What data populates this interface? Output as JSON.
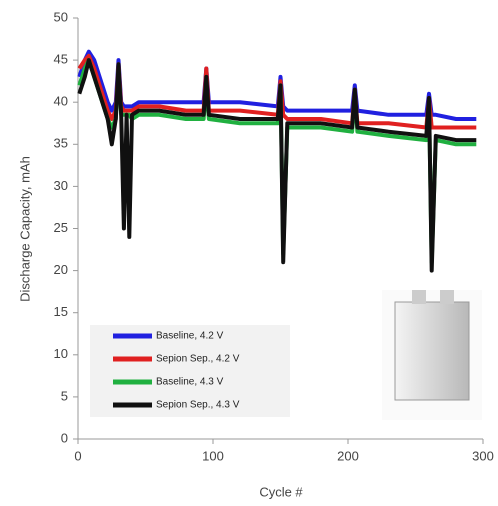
{
  "chart_data": {
    "type": "line",
    "x_label": "Cycle #",
    "y_label": "Discharge Capacity, mAh",
    "x": [
      1,
      5,
      8,
      12,
      18,
      22,
      25,
      28,
      30,
      32,
      34,
      36,
      38,
      40,
      45,
      60,
      80,
      93,
      95,
      97,
      120,
      148,
      150,
      152,
      155,
      180,
      203,
      205,
      207,
      230,
      258,
      260,
      262,
      265,
      280,
      295
    ],
    "series": [
      {
        "name": "Baseline, 4.2 V",
        "color": "#2020e0",
        "values": [
          43,
          45,
          46,
          45,
          42,
          40,
          39,
          40,
          45,
          40,
          39.5,
          39.5,
          39.5,
          39.5,
          40,
          40,
          40,
          40,
          44,
          40,
          40,
          39.5,
          43,
          39.5,
          39,
          39,
          39,
          42,
          39,
          38.5,
          38.5,
          41,
          38.5,
          38.5,
          38,
          38
        ]
      },
      {
        "name": "Sepion Sep., 4.2 V",
        "color": "#e02020",
        "values": [
          44,
          45,
          45.5,
          44,
          41,
          39,
          38,
          39,
          44.5,
          39.5,
          39,
          39,
          39,
          39,
          39.5,
          39.5,
          39,
          39,
          44,
          39,
          39,
          38.5,
          42.5,
          38.5,
          38,
          38,
          37.5,
          41.5,
          37.5,
          37.5,
          37,
          40.5,
          37,
          37,
          37,
          37
        ]
      },
      {
        "name": "Baseline, 4.3 V",
        "color": "#20b040",
        "values": [
          42,
          44,
          45,
          43,
          40,
          38,
          37,
          38,
          44,
          38.5,
          38.5,
          38.5,
          38.5,
          38,
          38.5,
          38.5,
          38,
          38,
          42,
          38,
          37.5,
          37.5,
          42,
          22,
          37,
          37,
          36.5,
          41,
          36.5,
          36,
          35.5,
          40,
          21,
          35.5,
          35,
          35
        ]
      },
      {
        "name": "Sepion Sep., 4.3 V",
        "color": "#101010",
        "values": [
          41,
          43,
          45,
          43,
          40,
          38,
          35,
          38,
          44.5,
          38.5,
          25,
          38.5,
          24,
          38.5,
          39,
          39,
          38.5,
          38.5,
          43,
          38.5,
          38,
          38,
          42,
          21,
          37.5,
          37.5,
          37,
          41.5,
          37,
          36.5,
          36,
          40.5,
          20,
          36,
          35.5,
          35.5
        ]
      }
    ],
    "xlim": [
      0,
      300
    ],
    "xticks": [
      0,
      100,
      200,
      300
    ],
    "ylim": [
      0,
      50
    ],
    "yticks": [
      0,
      5,
      10,
      15,
      20,
      25,
      30,
      35,
      40,
      45,
      50
    ]
  }
}
